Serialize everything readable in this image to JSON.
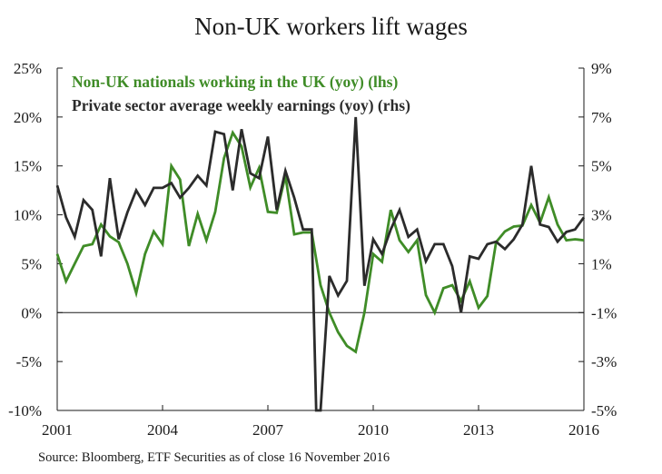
{
  "chart_data": {
    "type": "line",
    "title": "Non-UK workers lift wages",
    "source": "Source: Bloomberg, ETF Securities as of close 16 November 2016",
    "x_ticks": [
      "2001",
      "2004",
      "2007",
      "2010",
      "2013",
      "2016"
    ],
    "x_tick_values": [
      2001,
      2004,
      2007,
      2010,
      2013,
      2016
    ],
    "x_range": [
      2001,
      2016
    ],
    "y_left": {
      "range": [
        -10,
        25
      ],
      "ticks": [
        25,
        20,
        15,
        10,
        5,
        0,
        -5,
        -10
      ],
      "tick_labels": [
        "25%",
        "20%",
        "15%",
        "10%",
        "5%",
        "0%",
        "-5%",
        "-10%"
      ]
    },
    "y_right": {
      "range": [
        -5,
        9
      ],
      "ticks": [
        9,
        7,
        5,
        3,
        1,
        -1,
        -3,
        -5
      ],
      "tick_labels": [
        "9%",
        "7%",
        "5%",
        "3%",
        "1%",
        "-1%",
        "-3%",
        "-5%"
      ]
    },
    "series": [
      {
        "name": "Non-UK nationals working in the UK (yoy) (lhs)",
        "axis": "left",
        "color": "#3f8c27",
        "x": [
          2001.0,
          2001.25,
          2001.5,
          2001.75,
          2002.0,
          2002.25,
          2002.5,
          2002.75,
          2003.0,
          2003.25,
          2003.5,
          2003.75,
          2004.0,
          2004.25,
          2004.5,
          2004.75,
          2005.0,
          2005.25,
          2005.5,
          2005.75,
          2006.0,
          2006.25,
          2006.5,
          2006.75,
          2007.0,
          2007.25,
          2007.5,
          2007.75,
          2008.0,
          2008.25,
          2008.5,
          2008.75,
          2009.0,
          2009.25,
          2009.5,
          2009.75,
          2010.0,
          2010.25,
          2010.5,
          2010.75,
          2011.0,
          2011.25,
          2011.5,
          2011.75,
          2012.0,
          2012.25,
          2012.5,
          2012.75,
          2013.0,
          2013.25,
          2013.5,
          2013.75,
          2014.0,
          2014.25,
          2014.5,
          2014.75,
          2015.0,
          2015.25,
          2015.5,
          2015.75,
          2016.0
        ],
        "y": [
          6.0,
          3.2,
          5.0,
          6.8,
          7.0,
          9.0,
          7.8,
          7.2,
          5.0,
          2.0,
          6.0,
          8.3,
          7.0,
          15.0,
          13.6,
          6.8,
          10.1,
          7.4,
          10.3,
          15.8,
          18.4,
          17.0,
          12.8,
          14.8,
          10.3,
          10.2,
          14.0,
          8.0,
          8.2,
          8.2,
          2.8,
          0.0,
          -2.0,
          -3.4,
          -4.0,
          0.0,
          6.0,
          5.2,
          10.5,
          7.4,
          6.2,
          7.4,
          1.8,
          0.0,
          2.5,
          2.8,
          1.2,
          3.2,
          0.5,
          1.7,
          7.2,
          8.3,
          8.8,
          8.9,
          11.0,
          9.2,
          11.8,
          9.0,
          7.4,
          7.5,
          7.4
        ]
      },
      {
        "name": "Private sector average weekly earnings (yoy) (rhs)",
        "axis": "right",
        "color": "#2b2b2b",
        "x": [
          2001.0,
          2001.25,
          2001.5,
          2001.75,
          2002.0,
          2002.25,
          2002.5,
          2002.75,
          2003.0,
          2003.25,
          2003.5,
          2003.75,
          2004.0,
          2004.25,
          2004.5,
          2004.75,
          2005.0,
          2005.25,
          2005.5,
          2005.75,
          2006.0,
          2006.25,
          2006.5,
          2006.75,
          2007.0,
          2007.25,
          2007.5,
          2007.75,
          2008.0,
          2008.25,
          2008.375,
          2008.5,
          2008.75,
          2009.0,
          2009.25,
          2009.5,
          2009.75,
          2010.0,
          2010.25,
          2010.5,
          2010.75,
          2011.0,
          2011.25,
          2011.5,
          2011.75,
          2012.0,
          2012.25,
          2012.5,
          2012.75,
          2013.0,
          2013.25,
          2013.5,
          2013.75,
          2014.0,
          2014.25,
          2014.5,
          2014.75,
          2015.0,
          2015.25,
          2015.5,
          2015.75,
          2016.0
        ],
        "y": [
          4.2,
          2.9,
          2.1,
          3.6,
          3.2,
          1.3,
          4.5,
          2.0,
          3.1,
          4.0,
          3.4,
          4.1,
          4.1,
          4.3,
          3.7,
          4.1,
          4.6,
          4.2,
          6.4,
          6.3,
          4.0,
          6.5,
          4.7,
          4.5,
          6.2,
          3.2,
          4.8,
          3.7,
          2.4,
          2.4,
          -5.0,
          -5.0,
          0.5,
          -0.3,
          0.3,
          7.0,
          0.1,
          2.0,
          1.4,
          2.4,
          3.2,
          2.1,
          2.4,
          1.1,
          1.8,
          1.8,
          0.9,
          -1.0,
          1.3,
          1.2,
          1.8,
          1.9,
          1.6,
          2.0,
          2.6,
          5.0,
          2.6,
          2.5,
          1.9,
          2.3,
          2.4,
          2.9
        ]
      }
    ],
    "grid": false,
    "legend_position": "top-left"
  }
}
